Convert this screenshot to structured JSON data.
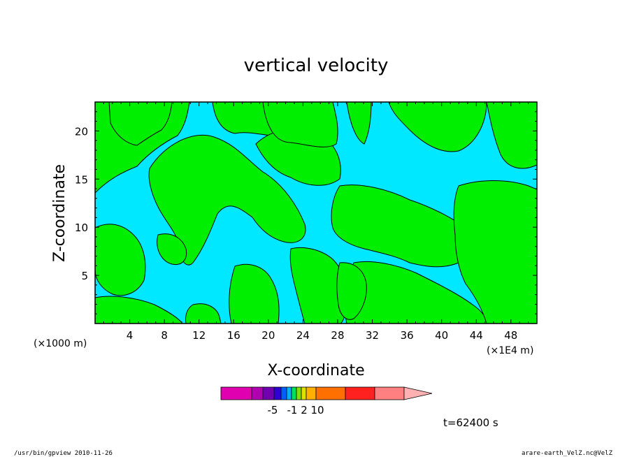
{
  "chart_data": {
    "type": "heatmap",
    "title": "vertical velocity",
    "xlabel": "X-coordinate",
    "ylabel": "Z-coordinate",
    "x_unit_left": "(×1000 m)",
    "x_unit_right": "(×1E4 m)",
    "xlim": [
      0,
      51
    ],
    "ylim": [
      0,
      23
    ],
    "x_ticks": [
      4,
      8,
      12,
      16,
      20,
      24,
      28,
      32,
      36,
      40,
      44,
      48
    ],
    "y_ticks": [
      5,
      10,
      15,
      20
    ],
    "colorbar": {
      "labels": [
        "-5",
        "-1",
        "2",
        "10"
      ],
      "colors": [
        "#e000b0",
        "#b000b0",
        "#7000b0",
        "#3000d0",
        "#0060ff",
        "#00b0ff",
        "#00e060",
        "#80e000",
        "#e0e000",
        "#ffb000",
        "#ff7000",
        "#ff2020",
        "#ff8080",
        "#ffb0b0"
      ]
    },
    "field_colors": {
      "negative": "#00e8ff",
      "positive": "#00ee00"
    },
    "time_label": "t=62400 s"
  },
  "footer": {
    "left": "/usr/bin/gpview  2010-11-26",
    "right": "arare-earth_VelZ.nc@VelZ"
  }
}
